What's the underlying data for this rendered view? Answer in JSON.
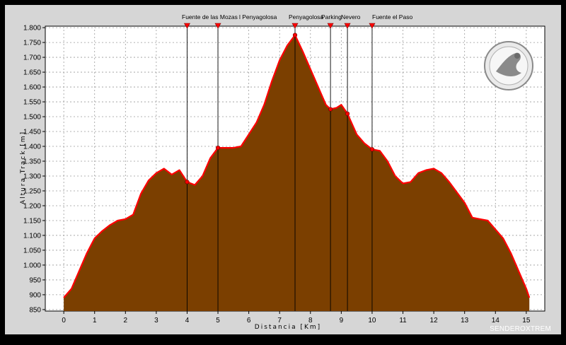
{
  "watermark": "SENDEROXTREM",
  "colors": {
    "fill": "#7b3f00",
    "profile_line": "#ff0000",
    "plot_background": "#ffffff",
    "frame_background": "#d6d6d6",
    "grid": "#9a9a9a",
    "waypoint_marker": "#ff0000",
    "waypoint_line": "#000000"
  },
  "logo_icon": "globe-with-figure-icon",
  "chart_data": {
    "type": "area",
    "xlabel": "Distancia [Km]",
    "ylabel": "Altura Track [m]",
    "xlim": [
      -0.6,
      15.6
    ],
    "ylim": [
      845,
      1805
    ],
    "xticks": [
      0,
      1,
      2,
      3,
      4,
      5,
      6,
      7,
      8,
      9,
      10,
      11,
      12,
      13,
      14,
      15
    ],
    "yticks": [
      850,
      900,
      950,
      1000,
      1050,
      1100,
      1150,
      1200,
      1250,
      1300,
      1350,
      1400,
      1450,
      1500,
      1550,
      1600,
      1650,
      1700,
      1750,
      1800
    ],
    "ytick_labels": [
      "850",
      "900",
      "950",
      "1.000",
      "1.050",
      "1.100",
      "1.150",
      "1.200",
      "1.250",
      "1.300",
      "1.350",
      "1.400",
      "1.450",
      "1.500",
      "1.550",
      "1.600",
      "1.650",
      "1.700",
      "1.750",
      "1.800"
    ],
    "grid": true,
    "series": [
      {
        "x": [
          0,
          0.25,
          0.5,
          0.75,
          1.0,
          1.25,
          1.5,
          1.75,
          2.0,
          2.25,
          2.5,
          2.75,
          3.0,
          3.25,
          3.5,
          3.75,
          4.0,
          4.25,
          4.5,
          4.75,
          5.0,
          5.25,
          5.5,
          5.75,
          6.0,
          6.25,
          6.5,
          6.75,
          7.0,
          7.25,
          7.5,
          7.75,
          8.0,
          8.25,
          8.5,
          8.65,
          8.85,
          9.0,
          9.2,
          9.5,
          9.75,
          10.0,
          10.25,
          10.5,
          10.75,
          11.0,
          11.25,
          11.5,
          11.75,
          12.0,
          12.25,
          12.5,
          12.75,
          13.0,
          13.25,
          13.5,
          13.75,
          14.0,
          14.25,
          14.5,
          14.75,
          15.0,
          15.1
        ],
        "y": [
          890,
          920,
          980,
          1040,
          1090,
          1115,
          1135,
          1150,
          1155,
          1170,
          1240,
          1285,
          1310,
          1325,
          1305,
          1320,
          1280,
          1270,
          1300,
          1360,
          1395,
          1395,
          1395,
          1400,
          1440,
          1480,
          1540,
          1620,
          1690,
          1740,
          1775,
          1720,
          1660,
          1600,
          1540,
          1525,
          1530,
          1540,
          1510,
          1440,
          1410,
          1390,
          1385,
          1350,
          1300,
          1275,
          1280,
          1310,
          1320,
          1325,
          1310,
          1280,
          1245,
          1210,
          1160,
          1155,
          1150,
          1120,
          1090,
          1040,
          980,
          920,
          890
        ]
      }
    ],
    "waypoints": [
      {
        "name": "Fuente de las Mozas",
        "x": 4.0,
        "y": 1280,
        "label": "Fuente de las Mozas"
      },
      {
        "name": "l Penyagolosa",
        "x": 5.0,
        "y": 1395,
        "label": "l Penyagolosa"
      },
      {
        "name": "Penyagolosa",
        "x": 7.5,
        "y": 1775,
        "label": "Penyagolosa"
      },
      {
        "name": "Parking",
        "x": 8.65,
        "y": 1525,
        "label": "Parking"
      },
      {
        "name": "Nevero",
        "x": 9.2,
        "y": 1510,
        "label": "Nevero"
      },
      {
        "name": "Fuente el Paso",
        "x": 10.0,
        "y": 1390,
        "label": "Fuente el Paso"
      }
    ]
  }
}
